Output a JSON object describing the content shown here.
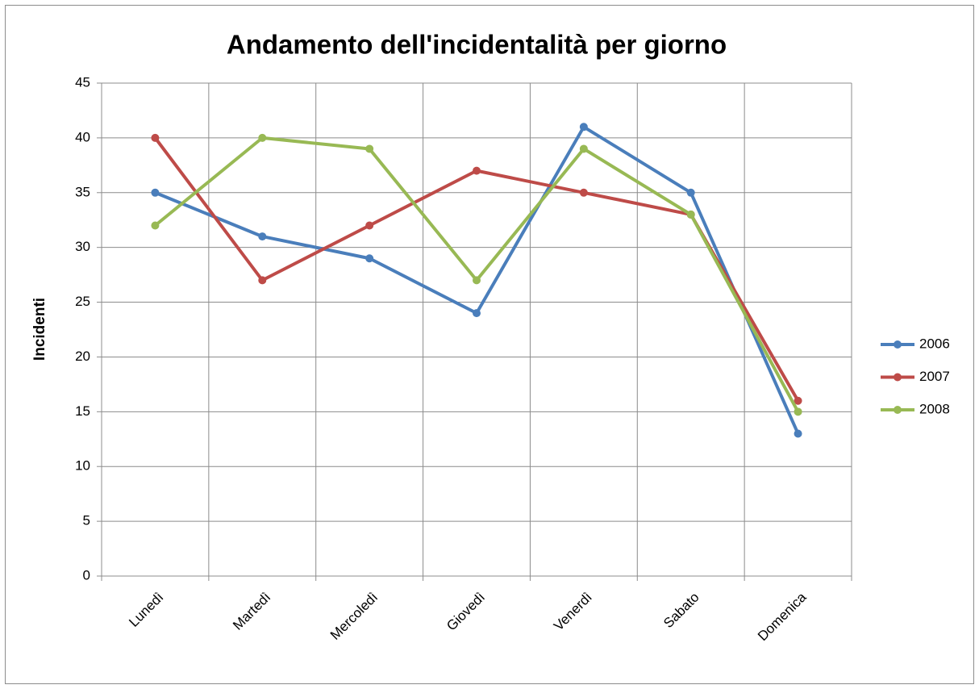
{
  "chart_data": {
    "type": "line",
    "title": "Andamento dell'incidentalità per giorno",
    "y_label": "Incidenti",
    "categories": [
      "Lunedì",
      "Martedì",
      "Mercoledì",
      "Giovedì",
      "Venerdì",
      "Sabato",
      "Domenica"
    ],
    "series": [
      {
        "name": "2006",
        "color": "#4a7ebb",
        "values": [
          35,
          31,
          29,
          24,
          41,
          35,
          13
        ]
      },
      {
        "name": "2007",
        "color": "#be4b48",
        "values": [
          40,
          27,
          32,
          37,
          35,
          33,
          16
        ]
      },
      {
        "name": "2008",
        "color": "#98b954",
        "values": [
          32,
          40,
          39,
          27,
          39,
          33,
          15
        ]
      }
    ],
    "ylim": [
      0,
      45
    ],
    "yticks": [
      0,
      5,
      10,
      15,
      20,
      25,
      30,
      35,
      40,
      45
    ],
    "grid": true,
    "legend": "right"
  }
}
